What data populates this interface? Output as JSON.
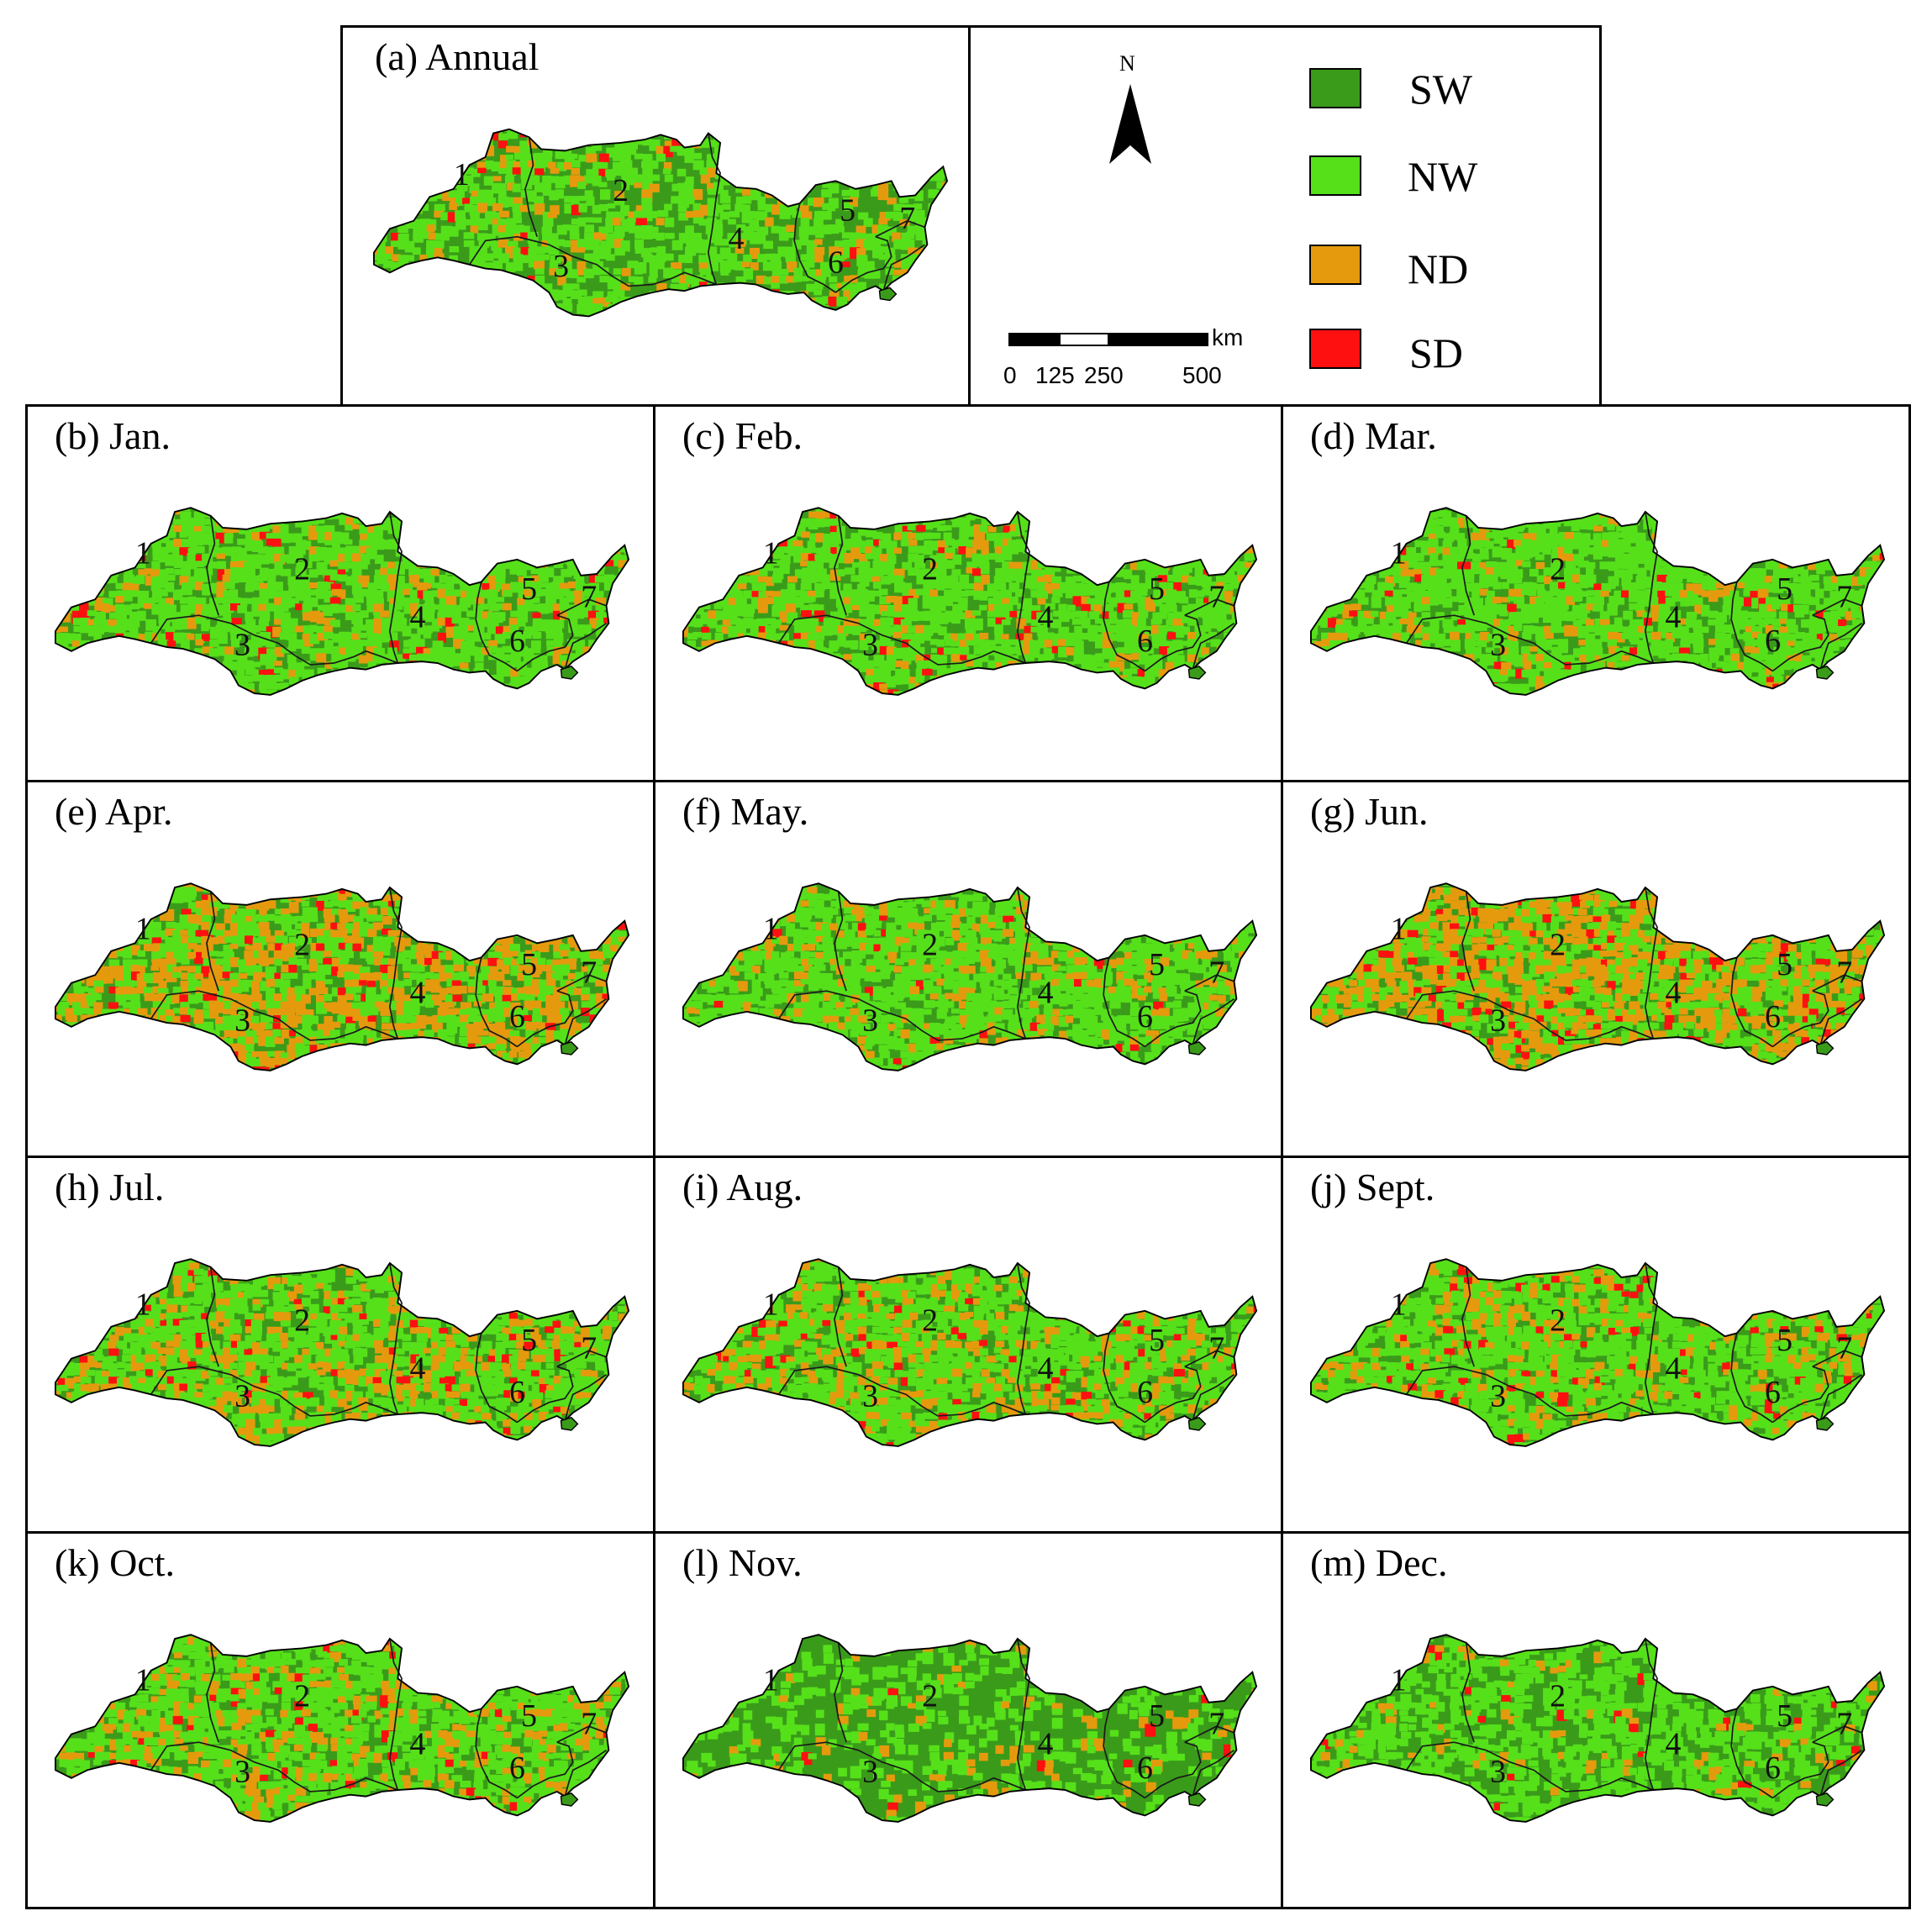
{
  "annual_panel": {
    "title": "(a) Annual"
  },
  "legend": {
    "items": [
      {
        "label": "SW",
        "color": "#3a9b1a"
      },
      {
        "label": "NW",
        "color": "#56e01a"
      },
      {
        "label": "ND",
        "color": "#e59a0e"
      },
      {
        "label": "SD",
        "color": "#ff1010"
      }
    ],
    "north_letter": "N",
    "scale_unit": "km",
    "scale_ticks": [
      "0",
      "125",
      "250",
      "500"
    ]
  },
  "regions": [
    "1",
    "2",
    "3",
    "4",
    "5",
    "6",
    "7"
  ],
  "monthly_panels": [
    {
      "title": "(b) Jan.",
      "pattern": {
        "nw": 0.62,
        "nd": 0.1,
        "sd": 0.03
      }
    },
    {
      "title": "(c) Feb.",
      "pattern": {
        "nw": 0.6,
        "nd": 0.12,
        "sd": 0.03
      }
    },
    {
      "title": "(d) Mar.",
      "pattern": {
        "nw": 0.66,
        "nd": 0.1,
        "sd": 0.03
      }
    },
    {
      "title": "(e) Apr.",
      "pattern": {
        "nw": 0.4,
        "nd": 0.35,
        "sd": 0.05
      }
    },
    {
      "title": "(f) May.",
      "pattern": {
        "nw": 0.6,
        "nd": 0.14,
        "sd": 0.02
      }
    },
    {
      "title": "(g) Jun.",
      "pattern": {
        "nw": 0.38,
        "nd": 0.4,
        "sd": 0.06
      }
    },
    {
      "title": "(h) Jul.",
      "pattern": {
        "nw": 0.55,
        "nd": 0.2,
        "sd": 0.04
      }
    },
    {
      "title": "(i) Aug.",
      "pattern": {
        "nw": 0.55,
        "nd": 0.22,
        "sd": 0.03
      }
    },
    {
      "title": "(j) Sept.",
      "pattern": {
        "nw": 0.6,
        "nd": 0.15,
        "sd": 0.04
      }
    },
    {
      "title": "(k) Oct.",
      "pattern": {
        "nw": 0.58,
        "nd": 0.18,
        "sd": 0.03
      }
    },
    {
      "title": "(l) Nov.",
      "pattern": {
        "nw": 0.25,
        "nd": 0.05,
        "sd": 0.01
      }
    },
    {
      "title": "(m) Dec.",
      "pattern": {
        "nw": 0.52,
        "nd": 0.06,
        "sd": 0.02
      }
    }
  ],
  "annual_pattern": {
    "nw": 0.45,
    "nd": 0.1,
    "sd": 0.02
  }
}
